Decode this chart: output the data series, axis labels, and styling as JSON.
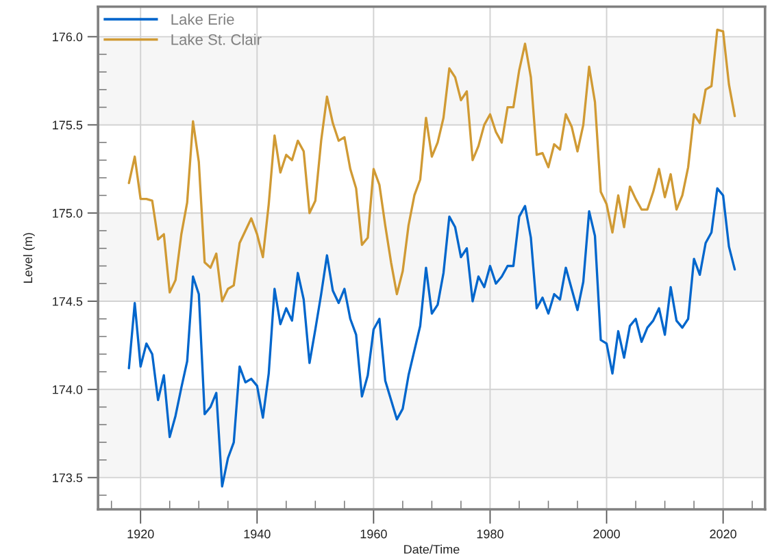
{
  "chart_data": {
    "type": "line",
    "xlabel": "Date/Time",
    "ylabel": "Level (m)",
    "x": [
      1918,
      1919,
      1920,
      1921,
      1922,
      1923,
      1924,
      1925,
      1926,
      1927,
      1928,
      1929,
      1930,
      1931,
      1932,
      1933,
      1934,
      1935,
      1936,
      1937,
      1938,
      1939,
      1940,
      1941,
      1942,
      1943,
      1944,
      1945,
      1946,
      1947,
      1948,
      1949,
      1950,
      1951,
      1952,
      1953,
      1954,
      1955,
      1956,
      1957,
      1958,
      1959,
      1960,
      1961,
      1962,
      1963,
      1964,
      1965,
      1966,
      1967,
      1968,
      1969,
      1970,
      1971,
      1972,
      1973,
      1974,
      1975,
      1976,
      1977,
      1978,
      1979,
      1980,
      1981,
      1982,
      1983,
      1984,
      1985,
      1986,
      1987,
      1988,
      1989,
      1990,
      1991,
      1992,
      1993,
      1994,
      1995,
      1996,
      1997,
      1998,
      1999,
      2000,
      2001,
      2002,
      2003,
      2004,
      2005,
      2006,
      2007,
      2008,
      2009,
      2010,
      2011,
      2012,
      2013,
      2014,
      2015,
      2016,
      2017,
      2018,
      2019,
      2020,
      2021,
      2022
    ],
    "series": [
      {
        "name": "Lake Erie",
        "color": "#0066cc",
        "values": [
          174.12,
          174.49,
          174.13,
          174.26,
          174.2,
          173.94,
          174.08,
          173.73,
          173.85,
          174.01,
          174.16,
          174.64,
          174.54,
          173.86,
          173.9,
          173.98,
          173.45,
          173.61,
          173.7,
          174.13,
          174.04,
          174.06,
          174.02,
          173.84,
          174.09,
          174.57,
          174.37,
          174.46,
          174.39,
          174.66,
          174.51,
          174.15,
          174.34,
          174.54,
          174.76,
          174.56,
          174.49,
          174.57,
          174.4,
          174.31,
          173.96,
          174.08,
          174.34,
          174.4,
          174.05,
          173.94,
          173.83,
          173.89,
          174.08,
          174.22,
          174.36,
          174.69,
          174.43,
          174.48,
          174.66,
          174.98,
          174.92,
          174.75,
          174.8,
          174.5,
          174.64,
          174.58,
          174.7,
          174.6,
          174.64,
          174.7,
          174.7,
          174.98,
          175.04,
          174.86,
          174.46,
          174.52,
          174.43,
          174.54,
          174.51,
          174.69,
          174.57,
          174.45,
          174.61,
          175.01,
          174.87,
          174.28,
          174.26,
          174.09,
          174.33,
          174.18,
          174.36,
          174.4,
          174.27,
          174.35,
          174.39,
          174.46,
          174.31,
          174.58,
          174.39,
          174.35,
          174.4,
          174.74,
          174.65,
          174.83,
          174.89,
          175.14,
          175.1,
          174.81,
          174.68
        ]
      },
      {
        "name": "Lake St. Clair",
        "color": "#d09a34",
        "values": [
          175.17,
          175.32,
          175.08,
          175.08,
          175.07,
          174.85,
          174.88,
          174.55,
          174.62,
          174.88,
          175.06,
          175.52,
          175.29,
          174.72,
          174.69,
          174.77,
          174.5,
          174.57,
          174.59,
          174.83,
          174.9,
          174.97,
          174.88,
          174.75,
          175.05,
          175.44,
          175.23,
          175.33,
          175.3,
          175.41,
          175.35,
          175.0,
          175.07,
          175.41,
          175.66,
          175.51,
          175.41,
          175.43,
          175.25,
          175.14,
          174.82,
          174.86,
          175.25,
          175.16,
          174.93,
          174.72,
          174.54,
          174.67,
          174.93,
          175.1,
          175.19,
          175.54,
          175.32,
          175.4,
          175.54,
          175.82,
          175.77,
          175.64,
          175.69,
          175.3,
          175.38,
          175.5,
          175.56,
          175.46,
          175.4,
          175.6,
          175.6,
          175.81,
          175.96,
          175.77,
          175.33,
          175.34,
          175.26,
          175.39,
          175.36,
          175.56,
          175.49,
          175.35,
          175.5,
          175.83,
          175.63,
          175.12,
          175.05,
          174.89,
          175.1,
          174.92,
          175.15,
          175.08,
          175.02,
          175.02,
          175.12,
          175.25,
          175.09,
          175.22,
          175.02,
          175.1,
          175.26,
          175.56,
          175.51,
          175.7,
          175.72,
          176.04,
          176.03,
          175.73,
          175.55
        ]
      }
    ],
    "xlim": [
      1912.7,
      2027.2
    ],
    "xticks": [
      {
        "value": 1915,
        "label": null
      },
      1920,
      {
        "value": 1925,
        "label": null
      },
      {
        "value": 1930,
        "label": null
      },
      {
        "value": 1935,
        "label": null
      },
      1940,
      {
        "value": 1945,
        "label": null
      },
      {
        "value": 1950,
        "label": null
      },
      {
        "value": 1955,
        "label": null
      },
      1960,
      {
        "value": 1965,
        "label": null
      },
      {
        "value": 1970,
        "label": null
      },
      {
        "value": 1975,
        "label": null
      },
      1980,
      {
        "value": 1985,
        "label": null
      },
      {
        "value": 1990,
        "label": null
      },
      {
        "value": 1995,
        "label": null
      },
      2000,
      {
        "value": 2005,
        "label": null
      },
      {
        "value": 2010,
        "label": null
      },
      {
        "value": 2015,
        "label": null
      },
      2020,
      {
        "value": 2025,
        "label": null
      }
    ],
    "ylim": [
      173.32,
      176.17
    ],
    "yticks": [
      {
        "value": 173.4,
        "label": null
      },
      173.5,
      {
        "value": 173.6,
        "label": null
      },
      {
        "value": 173.7,
        "label": null
      },
      {
        "value": 173.8,
        "label": null
      },
      {
        "value": 173.9,
        "label": null
      },
      {
        "value": 174,
        "label": "174.0"
      },
      {
        "value": 174.1,
        "label": null
      },
      {
        "value": 174.2,
        "label": null
      },
      {
        "value": 174.3,
        "label": null
      },
      {
        "value": 174.4,
        "label": null
      },
      174.5,
      {
        "value": 174.6,
        "label": null
      },
      {
        "value": 174.7,
        "label": null
      },
      {
        "value": 174.8,
        "label": null
      },
      {
        "value": 174.9,
        "label": null
      },
      {
        "value": 175,
        "label": "175.0"
      },
      {
        "value": 175.1,
        "label": null
      },
      {
        "value": 175.2,
        "label": null
      },
      {
        "value": 175.3,
        "label": null
      },
      {
        "value": 175.4,
        "label": null
      },
      175.5,
      {
        "value": 175.6,
        "label": null
      },
      {
        "value": 175.7,
        "label": null
      },
      {
        "value": 175.8,
        "label": null
      },
      {
        "value": 175.9,
        "label": null
      },
      {
        "value": 176,
        "label": "176.0"
      }
    ],
    "bands": [
      {
        "axis": "y",
        "from": 175.5,
        "to": 176.0,
        "color": "#f6f6f6"
      },
      {
        "axis": "y",
        "from": 174.5,
        "to": 175.0,
        "color": "#f6f6f6"
      },
      {
        "axis": "y",
        "from": 173.5,
        "to": 174.0,
        "color": "#f6f6f6"
      }
    ],
    "grid": true,
    "legend": "top left",
    "line_style": "solid"
  }
}
